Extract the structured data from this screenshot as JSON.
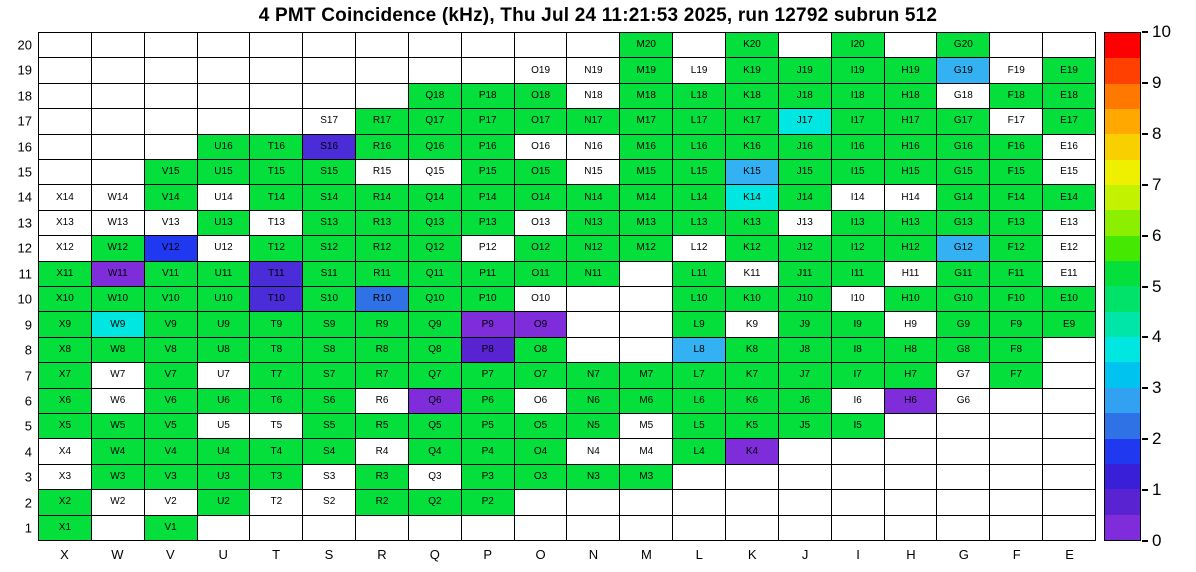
{
  "title": "4 PMT Coincidence (kHz), Thu Jul 24 11:21:53 2025, run 12792 subrun 512",
  "chart_data": {
    "type": "heatmap",
    "title": "4 PMT Coincidence (kHz), Thu Jul 24 11:21:53 2025, run 12792 subrun 512",
    "xlabel": "",
    "ylabel": "",
    "columns": [
      "X",
      "W",
      "V",
      "U",
      "T",
      "S",
      "R",
      "Q",
      "P",
      "O",
      "N",
      "M",
      "L",
      "K",
      "J",
      "I",
      "H",
      "G",
      "F",
      "E"
    ],
    "rows": [
      20,
      19,
      18,
      17,
      16,
      15,
      14,
      13,
      12,
      11,
      10,
      9,
      8,
      7,
      6,
      5,
      4,
      3,
      2,
      1
    ],
    "palette": {
      "g": {
        "name": "green",
        "hex": "#05DF3B",
        "value_khz": 5.5
      },
      "c": {
        "name": "cyan",
        "hex": "#00E6E0",
        "value_khz": 4.0
      },
      "lb": {
        "name": "light-blue",
        "hex": "#33B1F2",
        "value_khz": 3.0
      },
      "mb": {
        "name": "medium-blue",
        "hex": "#2E72E5",
        "value_khz": 2.5
      },
      "b": {
        "name": "blue",
        "hex": "#2038F0",
        "value_khz": 1.9
      },
      "bv": {
        "name": "blue-violet",
        "hex": "#4B2CD9",
        "value_khz": 1.4
      },
      "dp": {
        "name": "dark-purple",
        "hex": "#5A23D2",
        "value_khz": 1.1
      },
      "p": {
        "name": "purple",
        "hex": "#7F2CDB",
        "value_khz": 0.7
      },
      "w": {
        "name": "white-zero",
        "hex": "#FFFFFF",
        "value_khz": 0
      }
    },
    "grid": [
      [
        "",
        "",
        "",
        "",
        "",
        "",
        "",
        "",
        "",
        "",
        "",
        "g",
        "",
        "g",
        "",
        "g",
        "",
        "g",
        "",
        ""
      ],
      [
        "",
        "",
        "",
        "",
        "",
        "",
        "",
        "",
        "",
        "w",
        "w",
        "g",
        "w",
        "g",
        "g",
        "g",
        "g",
        "lb",
        "w",
        "g"
      ],
      [
        "",
        "",
        "",
        "",
        "",
        "",
        "",
        "g",
        "g",
        "g",
        "w",
        "g",
        "g",
        "g",
        "g",
        "g",
        "g",
        "w",
        "g",
        "g"
      ],
      [
        "",
        "",
        "",
        "",
        "",
        "w",
        "g",
        "g",
        "g",
        "g",
        "g",
        "g",
        "g",
        "g",
        "c",
        "g",
        "g",
        "g",
        "w",
        "g"
      ],
      [
        "",
        "",
        "",
        "g",
        "g",
        "bv",
        "g",
        "g",
        "g",
        "w",
        "w",
        "g",
        "g",
        "g",
        "g",
        "g",
        "g",
        "g",
        "g",
        "w"
      ],
      [
        "",
        "",
        "g",
        "g",
        "g",
        "g",
        "w",
        "w",
        "g",
        "g",
        "w",
        "g",
        "g",
        "lb",
        "g",
        "g",
        "g",
        "g",
        "g",
        "w"
      ],
      [
        "w",
        "w",
        "g",
        "w",
        "g",
        "g",
        "g",
        "g",
        "g",
        "g",
        "g",
        "g",
        "g",
        "c",
        "g",
        "w",
        "w",
        "g",
        "g",
        "g"
      ],
      [
        "w",
        "w",
        "w",
        "g",
        "w",
        "g",
        "g",
        "g",
        "g",
        "w",
        "g",
        "g",
        "g",
        "g",
        "w",
        "g",
        "g",
        "g",
        "g",
        "w"
      ],
      [
        "w",
        "g",
        "b",
        "w",
        "g",
        "g",
        "g",
        "g",
        "w",
        "g",
        "g",
        "g",
        "w",
        "g",
        "g",
        "g",
        "g",
        "lb",
        "g",
        "w"
      ],
      [
        "g",
        "p",
        "g",
        "g",
        "bv",
        "g",
        "g",
        "g",
        "g",
        "g",
        "g",
        "",
        "g",
        "w",
        "g",
        "g",
        "w",
        "g",
        "g",
        "w"
      ],
      [
        "g",
        "g",
        "g",
        "g",
        "bv",
        "g",
        "mb",
        "g",
        "g",
        "w",
        "",
        "",
        "g",
        "g",
        "g",
        "w",
        "g",
        "g",
        "g",
        "g"
      ],
      [
        "g",
        "c",
        "g",
        "g",
        "g",
        "g",
        "g",
        "g",
        "p",
        "p",
        "",
        "",
        "g",
        "w",
        "g",
        "g",
        "w",
        "g",
        "g",
        "g"
      ],
      [
        "g",
        "g",
        "g",
        "g",
        "g",
        "g",
        "g",
        "g",
        "dp",
        "g",
        "",
        "",
        "lb",
        "g",
        "g",
        "g",
        "g",
        "g",
        "g",
        ""
      ],
      [
        "g",
        "w",
        "g",
        "w",
        "g",
        "g",
        "g",
        "g",
        "g",
        "g",
        "g",
        "g",
        "g",
        "g",
        "g",
        "g",
        "g",
        "w",
        "g",
        ""
      ],
      [
        "g",
        "w",
        "g",
        "g",
        "g",
        "g",
        "w",
        "p",
        "g",
        "w",
        "g",
        "g",
        "g",
        "g",
        "g",
        "w",
        "p",
        "w",
        "",
        ""
      ],
      [
        "g",
        "g",
        "g",
        "w",
        "w",
        "g",
        "g",
        "g",
        "g",
        "g",
        "g",
        "w",
        "g",
        "g",
        "g",
        "g",
        "",
        "",
        "",
        ""
      ],
      [
        "w",
        "g",
        "g",
        "g",
        "g",
        "g",
        "w",
        "g",
        "g",
        "g",
        "w",
        "w",
        "g",
        "p",
        "",
        "",
        "",
        "",
        "",
        ""
      ],
      [
        "w",
        "g",
        "g",
        "g",
        "g",
        "w",
        "g",
        "w",
        "g",
        "g",
        "g",
        "g",
        "",
        "",
        "",
        "",
        "",
        "",
        "",
        ""
      ],
      [
        "g",
        "w",
        "w",
        "g",
        "w",
        "w",
        "g",
        "g",
        "g",
        "",
        "",
        "",
        "",
        "",
        "",
        "",
        "",
        "",
        "",
        ""
      ],
      [
        "g",
        "",
        "g",
        "",
        "",
        "",
        "",
        "",
        "",
        "",
        "",
        "",
        "",
        "",
        "",
        "",
        "",
        "",
        "",
        ""
      ]
    ],
    "colorbar": {
      "min": 0,
      "max": 10,
      "ticks": [
        0,
        1,
        2,
        3,
        4,
        5,
        6,
        7,
        8,
        9,
        10
      ],
      "colors": [
        "#7F2CDB",
        "#5A23D2",
        "#3A1FD8",
        "#2038F0",
        "#2E72E5",
        "#33A1F2",
        "#00C3F0",
        "#00E6E0",
        "#00E5A8",
        "#00E26A",
        "#05DF3B",
        "#45E800",
        "#8CEF00",
        "#C3F200",
        "#EFF000",
        "#F8D000",
        "#FFA800",
        "#FF7800",
        "#FF4000",
        "#FF0000"
      ]
    },
    "layout": {
      "grid_on": true,
      "legend_position": "right-colorbar",
      "empty_cell_meaning": "no-channel",
      "white_cell_meaning": "zero-rate"
    }
  }
}
